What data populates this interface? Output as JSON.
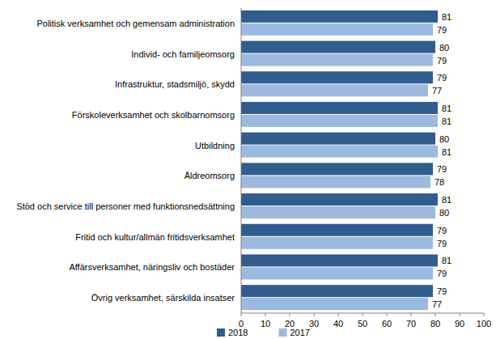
{
  "chart_data": {
    "type": "bar",
    "orientation": "horizontal",
    "data_labels": true,
    "grid": false,
    "legend": "bottom",
    "categories": [
      "Politisk verksamhet och gemensam administration",
      "Individ- och familjeomsorg",
      "Infrastruktur, stadsmiljö, skydd",
      "Förskoleverksamhet och skolbarnomsorg",
      "Utbildning",
      "Äldreomsorg",
      "Stöd och service till personer med funktionsnedsättning",
      "Fritid och kultur/allmän fritidsverksamhet",
      "Affärsverksamhet, näringsliv och bostäder",
      "Övrig verksamhet, särskilda insatser"
    ],
    "series": [
      {
        "name": "2018",
        "color": "#305c8e",
        "values": [
          81,
          80,
          79,
          81,
          80,
          79,
          81,
          79,
          81,
          79
        ]
      },
      {
        "name": "2017",
        "color": "#9db9df",
        "values": [
          79,
          79,
          77,
          81,
          81,
          78,
          80,
          79,
          79,
          77
        ]
      }
    ],
    "xlim": [
      0,
      100
    ],
    "xticks": [
      0,
      10,
      20,
      30,
      40,
      50,
      60,
      70,
      80,
      90,
      100
    ]
  }
}
